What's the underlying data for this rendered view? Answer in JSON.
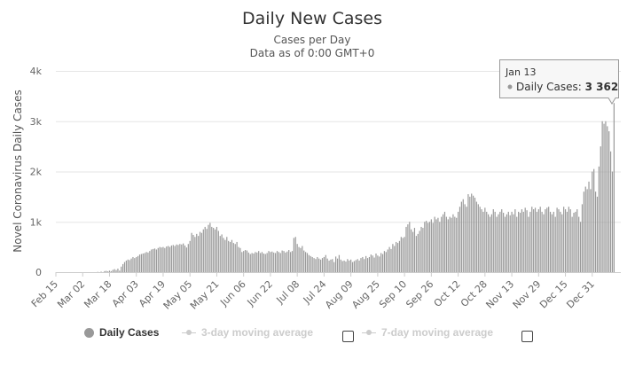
{
  "chart_data": {
    "type": "bar",
    "title": "Daily New Cases",
    "subtitle": [
      "Cases per Day",
      "Data as of 0:00 GMT+0"
    ],
    "ylabel": "Novel Coronavirus Daily Cases",
    "xlabel": "",
    "ylim": [
      0,
      4000
    ],
    "y_ticks": [
      {
        "v": 0,
        "label": "0"
      },
      {
        "v": 1000,
        "label": "1k"
      },
      {
        "v": 2000,
        "label": "2k"
      },
      {
        "v": 3000,
        "label": "3k"
      },
      {
        "v": 4000,
        "label": "4k"
      }
    ],
    "x_start": "Feb 15",
    "x_tick_labels": [
      "Feb 15",
      "Mar 02",
      "Mar 18",
      "Apr 03",
      "Apr 19",
      "May 05",
      "May 21",
      "Jun 06",
      "Jun 22",
      "Jul 08",
      "Jul 24",
      "Aug 09",
      "Aug 25",
      "Sep 10",
      "Sep 26",
      "Oct 12",
      "Oct 28",
      "Nov 13",
      "Nov 29",
      "Dec 15",
      "Dec 31"
    ],
    "x_tick_every_days": 16,
    "grid": true,
    "series": [
      {
        "name": "Daily Cases",
        "color": "#999999",
        "values": [
          0,
          0,
          0,
          0,
          0,
          0,
          0,
          0,
          0,
          0,
          0,
          0,
          0,
          0,
          0,
          0,
          0,
          0,
          0,
          0,
          0,
          0,
          0,
          0,
          0,
          5,
          0,
          10,
          0,
          20,
          25,
          15,
          30,
          20,
          45,
          60,
          40,
          70,
          30,
          110,
          160,
          200,
          230,
          250,
          240,
          270,
          300,
          280,
          300,
          320,
          350,
          360,
          370,
          380,
          400,
          390,
          420,
          450,
          460,
          470,
          450,
          480,
          500,
          490,
          500,
          480,
          510,
          520,
          500,
          530,
          540,
          520,
          550,
          540,
          560,
          550,
          570,
          530,
          490,
          560,
          620,
          780,
          740,
          700,
          760,
          720,
          800,
          780,
          850,
          900,
          860,
          940,
          980,
          900,
          880,
          850,
          900,
          820,
          720,
          750,
          680,
          640,
          700,
          620,
          600,
          640,
          580,
          560,
          600,
          500,
          480,
          400,
          420,
          440,
          430,
          390,
          360,
          380,
          370,
          400,
          390,
          420,
          380,
          400,
          370,
          360,
          380,
          420,
          400,
          410,
          390,
          380,
          420,
          400,
          380,
          430,
          420,
          390,
          410,
          440,
          400,
          420,
          680,
          700,
          560,
          500,
          480,
          520,
          430,
          400,
          380,
          340,
          320,
          300,
          280,
          260,
          300,
          270,
          250,
          280,
          300,
          340,
          270,
          230,
          250,
          260,
          200,
          310,
          270,
          340,
          250,
          220,
          230,
          210,
          260,
          230,
          250,
          200,
          220,
          240,
          260,
          230,
          280,
          300,
          260,
          320,
          280,
          300,
          350,
          330,
          290,
          370,
          330,
          310,
          380,
          360,
          420,
          400,
          450,
          500,
          460,
          560,
          520,
          600,
          580,
          620,
          700,
          680,
          700,
          900,
          950,
          1000,
          850,
          800,
          880,
          720,
          760,
          820,
          900,
          880,
          1000,
          1020,
          980,
          1000,
          1050,
          980,
          1100,
          1050,
          1080,
          1000,
          1100,
          1150,
          1200,
          1100,
          1050,
          1100,
          1080,
          1150,
          1100,
          1080,
          1200,
          1300,
          1400,
          1450,
          1350,
          1300,
          1550,
          1500,
          1560,
          1520,
          1480,
          1400,
          1350,
          1300,
          1250,
          1200,
          1280,
          1200,
          1150,
          1100,
          1150,
          1250,
          1200,
          1100,
          1150,
          1200,
          1250,
          1180,
          1100,
          1150,
          1200,
          1130,
          1200,
          1150,
          1250,
          1100,
          1200,
          1180,
          1250,
          1200,
          1280,
          1230,
          1100,
          1200,
          1300,
          1250,
          1280,
          1200,
          1250,
          1300,
          1200,
          1150,
          1250,
          1280,
          1300,
          1200,
          1150,
          1200,
          1100,
          1280,
          1250,
          1200,
          1150,
          1300,
          1250,
          1200,
          1300,
          1250,
          1100,
          1180,
          1200,
          1250,
          1100,
          1000,
          1350,
          1600,
          1700,
          1650,
          1800,
          1650,
          2000,
          2050,
          1600,
          1500,
          2100,
          2500,
          3000,
          2950,
          3000,
          2900,
          2800,
          2400,
          2000,
          3362
        ]
      }
    ],
    "tooltip": {
      "date": "Jan 13",
      "series": "Daily Cases",
      "label": "Daily Cases: ",
      "value": "3 362"
    }
  },
  "legend": {
    "items": [
      {
        "label": "Daily Cases",
        "active": true
      },
      {
        "label": "3-day moving average",
        "active": false
      },
      {
        "label": "7-day moving average",
        "active": false
      }
    ]
  }
}
